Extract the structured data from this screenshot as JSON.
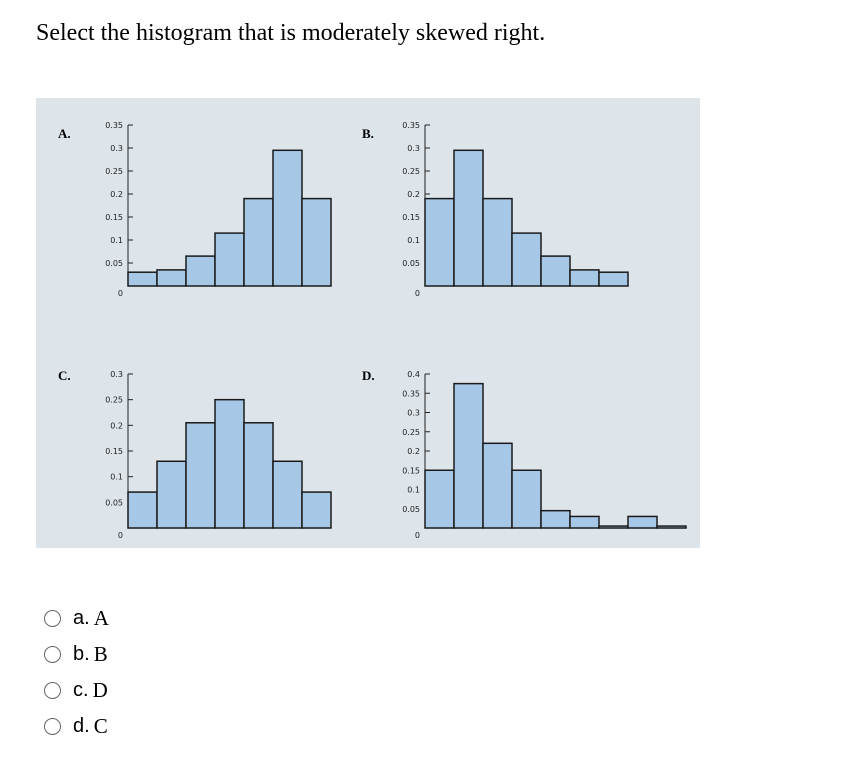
{
  "question": "Select the histogram that is moderately skewed right.",
  "colors": {
    "bar_fill": "#a7c7e7",
    "bar_stroke": "#1a1a1a",
    "panel_bg": "#dde4ea"
  },
  "options": [
    {
      "letter": "a.",
      "text": "A"
    },
    {
      "letter": "b.",
      "text": "B"
    },
    {
      "letter": "c.",
      "text": "D"
    },
    {
      "letter": "d.",
      "text": "C"
    }
  ],
  "chart_data": [
    {
      "type": "bar",
      "panel_label": "A.",
      "ylim": [
        0,
        0.35
      ],
      "yticks": [
        "0.35",
        "0.3",
        "0.25",
        "0.2",
        "0.15",
        "0.1",
        "0.05",
        "0"
      ],
      "ytick_values": [
        0.35,
        0.3,
        0.25,
        0.2,
        0.15,
        0.1,
        0.05,
        0
      ],
      "values": [
        0.03,
        0.035,
        0.065,
        0.115,
        0.19,
        0.295,
        0.19
      ]
    },
    {
      "type": "bar",
      "panel_label": "B.",
      "ylim": [
        0,
        0.35
      ],
      "yticks": [
        "0.35",
        "0.3",
        "0.25",
        "0.2",
        "0.15",
        "0.1",
        "0.05",
        "0"
      ],
      "ytick_values": [
        0.35,
        0.3,
        0.25,
        0.2,
        0.15,
        0.1,
        0.05,
        0
      ],
      "values": [
        0.19,
        0.295,
        0.19,
        0.115,
        0.065,
        0.035,
        0.03
      ]
    },
    {
      "type": "bar",
      "panel_label": "C.",
      "ylim": [
        0,
        0.3
      ],
      "yticks": [
        "0.3",
        "0.25",
        "0.2",
        "0.15",
        "0.1",
        "0.05",
        "0"
      ],
      "ytick_values": [
        0.3,
        0.25,
        0.2,
        0.15,
        0.1,
        0.05,
        0
      ],
      "values": [
        0.07,
        0.13,
        0.205,
        0.25,
        0.205,
        0.13,
        0.07
      ]
    },
    {
      "type": "bar",
      "panel_label": "D.",
      "ylim": [
        0,
        0.4
      ],
      "yticks": [
        "0.4",
        "0.35",
        "0.3",
        "0.25",
        "0.2",
        "0.15",
        "0.1",
        "0.05",
        "0"
      ],
      "ytick_values": [
        0.4,
        0.35,
        0.3,
        0.25,
        0.2,
        0.15,
        0.1,
        0.05,
        0
      ],
      "values": [
        0.15,
        0.375,
        0.22,
        0.15,
        0.045,
        0.03,
        0.005,
        0.03,
        0.005
      ]
    }
  ]
}
